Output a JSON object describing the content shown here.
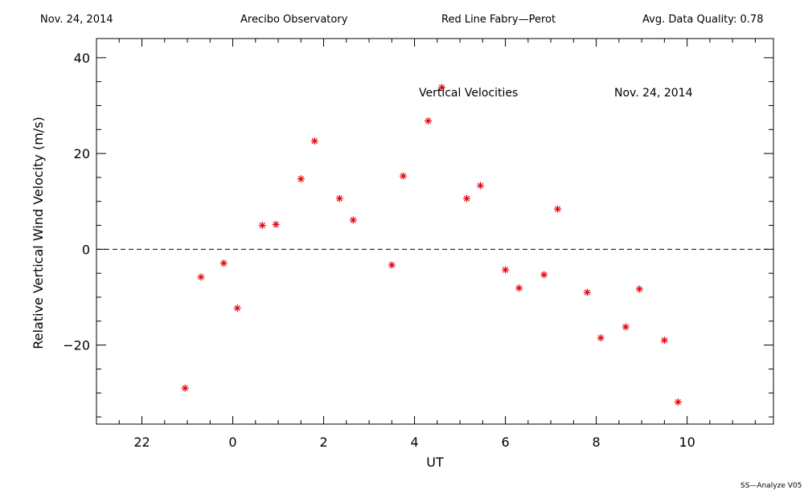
{
  "header": {
    "date": "Nov. 24, 2014",
    "observatory": "Arecibo Observatory",
    "instrument": "Red Line Fabry—Perot",
    "quality": "Avg. Data Quality: 0.78"
  },
  "footer": "SS—Analyze V05",
  "chart_data": {
    "type": "scatter",
    "title": "Vertical Velocities",
    "subtitle": "Nov. 24, 2014",
    "xlabel": "UT",
    "ylabel": "Relative Vertical Wind Velocity (m/s)",
    "xlim": [
      21.0,
      35.9
    ],
    "ylim": [
      -36.5,
      44.0
    ],
    "xticks": [
      22,
      24,
      26,
      28,
      30,
      32,
      34
    ],
    "xtick_labels": [
      "22",
      "0",
      "2",
      "4",
      "6",
      "8",
      "10"
    ],
    "yticks": [
      -20,
      0,
      20,
      40
    ],
    "ytick_labels": [
      "−20",
      "0",
      "20",
      "40"
    ],
    "zero_line": true,
    "marker": "asterisk",
    "marker_color": "#e8000b",
    "series": [
      {
        "x": [
          22.95,
          23.3,
          23.8,
          24.1,
          24.65,
          24.95,
          25.5,
          25.8,
          26.35,
          26.65,
          27.5,
          27.75,
          28.3,
          28.6,
          29.15,
          29.45,
          30.0,
          30.3,
          30.85,
          31.15,
          31.8,
          32.1,
          32.65,
          32.95,
          33.5,
          33.8
        ],
        "y": [
          -29.0,
          -5.8,
          -2.9,
          -12.3,
          5.0,
          5.2,
          14.7,
          22.6,
          10.6,
          6.1,
          -3.3,
          15.3,
          26.8,
          33.8,
          10.6,
          13.3,
          -4.3,
          -8.1,
          -5.3,
          8.4,
          -9.0,
          -18.5,
          -16.2,
          -8.3,
          -19.0,
          -31.9
        ]
      }
    ]
  }
}
